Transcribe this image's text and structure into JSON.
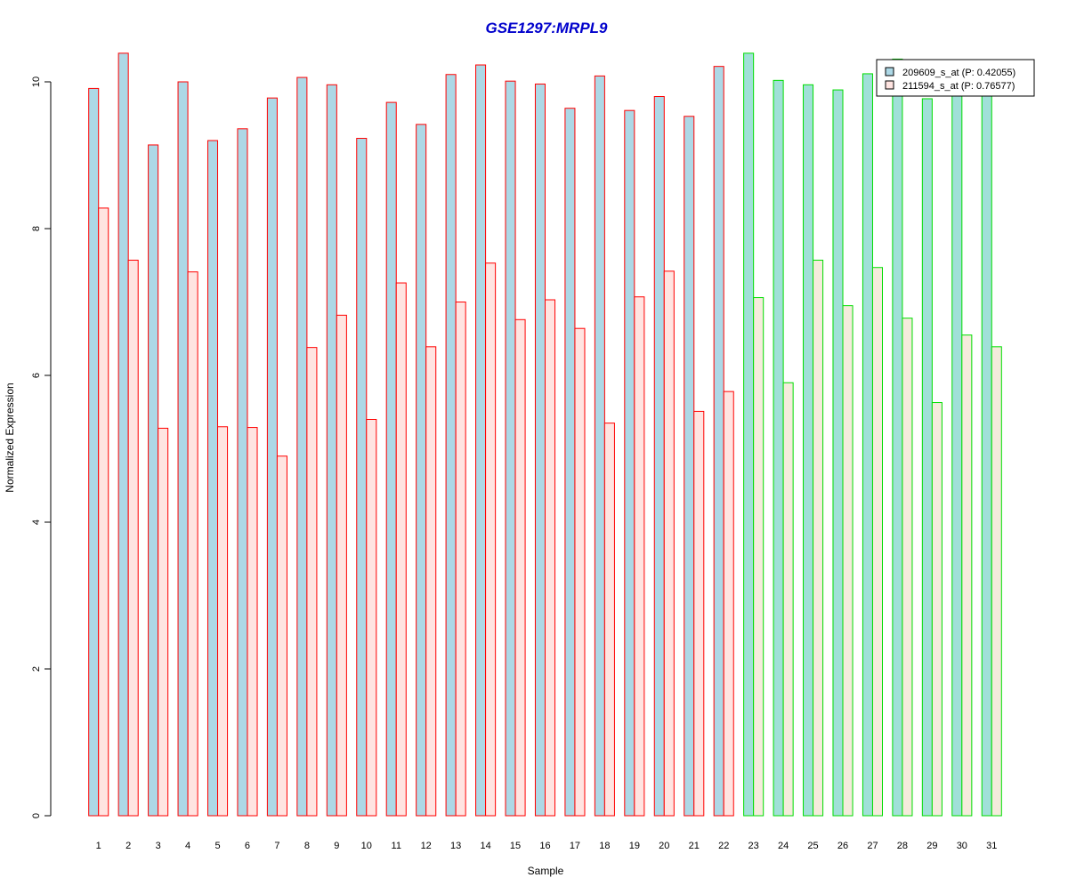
{
  "chart_data": {
    "type": "bar",
    "title": "GSE1297:MRPL9",
    "xlabel": "Sample",
    "ylabel": "Normalized Expression",
    "ylim": [
      0,
      10.4
    ],
    "yticks": [
      0,
      2,
      4,
      6,
      8,
      10
    ],
    "grid": false,
    "legend_position": "top-right",
    "categories": [
      "1",
      "2",
      "3",
      "4",
      "5",
      "6",
      "7",
      "8",
      "9",
      "10",
      "11",
      "12",
      "13",
      "14",
      "15",
      "16",
      "17",
      "18",
      "19",
      "20",
      "21",
      "22",
      "23",
      "24",
      "25",
      "26",
      "27",
      "28",
      "29",
      "30",
      "31"
    ],
    "series": [
      {
        "name": "209609_s_at (P: 0.42055)",
        "values": [
          9.91,
          10.39,
          9.14,
          10.0,
          9.2,
          9.36,
          9.78,
          10.06,
          9.96,
          9.23,
          9.72,
          9.42,
          10.1,
          10.23,
          10.01,
          9.97,
          9.64,
          10.08,
          9.61,
          9.8,
          9.53,
          10.21,
          10.39,
          10.02,
          9.96,
          9.89,
          10.11,
          10.31,
          9.77,
          9.87,
          9.88
        ]
      },
      {
        "name": "211594_s_at (P: 0.76577)",
        "values": [
          8.28,
          7.57,
          5.28,
          7.41,
          5.3,
          5.29,
          4.9,
          6.38,
          6.82,
          5.4,
          7.26,
          6.39,
          7.0,
          7.53,
          6.76,
          7.03,
          6.64,
          5.35,
          7.07,
          7.42,
          5.51,
          5.78,
          7.06,
          5.9,
          7.57,
          6.95,
          7.47,
          6.78,
          5.63,
          6.55,
          6.39
        ]
      }
    ],
    "group_outline_colors": {
      "group1": {
        "samples": "1-22",
        "color": "#ff0000"
      },
      "group2": {
        "samples": "23-31",
        "color": "#00dd00"
      }
    },
    "fill_colors": {
      "group1_series1": "#add8e6",
      "group1_series2": "#ffe4e1",
      "group2_series1": "#a0e0d8",
      "group2_series2": "#f5ebdc"
    },
    "title_color": "#0000cc"
  }
}
